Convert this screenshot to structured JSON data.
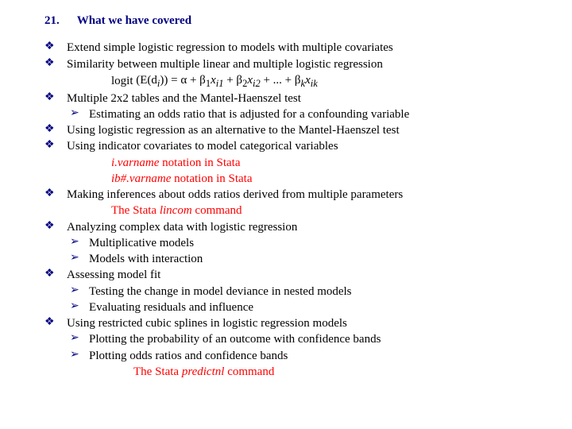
{
  "heading": {
    "num": "21.",
    "title": "What we have covered"
  },
  "items": [
    {
      "text": "Extend simple logistic regression to models with multiple covariates"
    },
    {
      "text": "Similarity between multiple linear and multiple logistic regression"
    },
    {
      "text": "Multiple 2x2 tables and the Mantel-Haenszel test"
    },
    {
      "text": "Using logistic regression as an alternative to the Mantel-Haenszel test"
    },
    {
      "text": "Using indicator covariates to model categorical variables"
    },
    {
      "text": "Making inferences about odds ratios derived from multiple parameters"
    },
    {
      "text": "Analyzing complex data with logistic regression"
    },
    {
      "text": "Assessing model fit"
    },
    {
      "text": "Using restricted cubic splines in logistic regression models"
    }
  ],
  "sub": {
    "logit_prefix": "logit ",
    "mh_adjust": "Estimating an odds ratio that is adjusted for a confounding variable",
    "ivar1_a": "i.varname",
    "ivar1_b": " notation in Stata",
    "ivar2_a": "ib#.varname",
    "ivar2_b": " notation in Stata",
    "lincom_a": "The Stata ",
    "lincom_b": "lincom",
    "lincom_c": " command",
    "mult": "Multiplicative models",
    "inter": "Models with interaction",
    "dev": "Testing the change in model deviance in nested models",
    "resid": "Evaluating residuals and influence",
    "prob": "Plotting the probability of an outcome with confidence bands",
    "odds": "Plotting odds ratios and confidence bands",
    "pred_a": "The Stata ",
    "pred_b": "predictnl",
    "pred_c": " command"
  },
  "formula": {
    "expr_open": "(E(d",
    "sub_i": "i",
    "expr_close": ")) = α + β",
    "b1": "1",
    "x": "x",
    "i1": "i1",
    "plus": " + β",
    "b2": "2",
    "i2": "i2",
    "dots": " + ... + β",
    "bk": "k",
    "ik": "ik"
  },
  "colors": {
    "accent": "#000080",
    "stata": "#ff0000",
    "text": "#000000",
    "bg": "#ffffff"
  },
  "typography": {
    "family": "Times New Roman",
    "base_size_pt": 12,
    "heading_weight": "bold"
  }
}
